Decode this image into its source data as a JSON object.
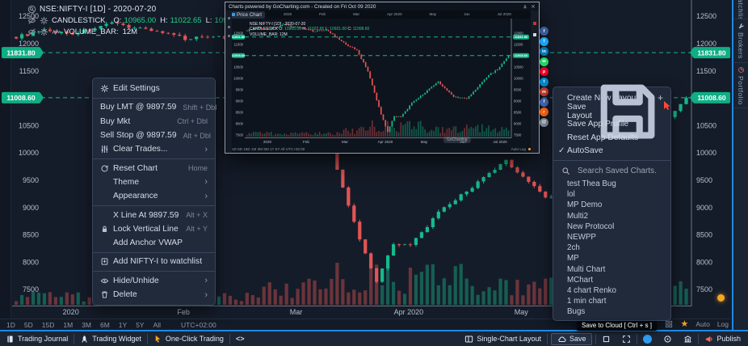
{
  "legend": {
    "symbol": "NSE:NIFTY-I [1D] - 2020-07-20",
    "study1": {
      "name": "CANDLESTICK",
      "fields": [
        [
          "O:",
          "10965.00"
        ],
        [
          "H:",
          "11022.65"
        ],
        [
          "L:",
          "10921.00"
        ],
        [
          "C:",
          "11008.60"
        ]
      ]
    },
    "study2": {
      "name": "VOLUME_BAR:",
      "value": "12M"
    }
  },
  "tf_bar": {
    "ranges": [
      "1D",
      "5D",
      "15D",
      "1M",
      "3M",
      "6M",
      "1Y",
      "5Y",
      "All"
    ],
    "timezone": "UTC+02:00",
    "auto": "Auto",
    "log": "Log"
  },
  "context_menu": {
    "items": [
      {
        "label": "Edit Settings",
        "icon": "gear",
        "sep_after": true
      },
      {
        "label": "Buy LMT @ 9897.59",
        "shortcut": "Shift + Dbl",
        "flush": true
      },
      {
        "label": "Buy Mkt",
        "shortcut": "Ctrl + Dbl",
        "flush": true
      },
      {
        "label": "Sell Stop @ 9897.59",
        "shortcut": "Alt + Dbl",
        "flush": true
      },
      {
        "label": "Clear Trades...",
        "icon": "sliders",
        "arrow": true,
        "sep_after": true
      },
      {
        "label": "Reset Chart",
        "icon": "refresh",
        "shortcut": "Home"
      },
      {
        "label": "Theme",
        "arrow": true
      },
      {
        "label": "Appearance",
        "arrow": true,
        "sep_after": true
      },
      {
        "label": "X Line At 9897.59",
        "shortcut": "Alt + X"
      },
      {
        "label": "Lock Vertical Line",
        "icon": "lock",
        "shortcut": "Alt + Y"
      },
      {
        "label": "Add Anchor VWAP",
        "sep_after": true
      },
      {
        "label": "Add NIFTY-I to watchlist",
        "icon": "bookmark-plus",
        "sep_after": true
      },
      {
        "label": "Hide/Unhide",
        "icon": "eye",
        "arrow": true
      },
      {
        "label": "Delete",
        "icon": "trash",
        "arrow": true
      }
    ]
  },
  "layout_menu": {
    "items": [
      {
        "label": "Create New Layout",
        "right_icon": "plus"
      },
      {
        "label": "Save Layout",
        "right_icon": "floppy"
      },
      {
        "label": "Save App Profile"
      },
      {
        "label": "Reset App Defaults"
      },
      {
        "label": "AutoSave",
        "checked": true
      }
    ],
    "search_placeholder": "Search Saved Charts.",
    "saved_charts": [
      "test Thea Bug",
      "lol",
      "MP Demo",
      "Multi2",
      "New Protocol",
      "NEWPP",
      "2ch",
      "MP",
      "Multi Chart",
      "MChart",
      "4 chart Renko",
      "1 min chart",
      "Bugs"
    ]
  },
  "popup": {
    "title": "Charts powered by GoCharting.com - Created on Fri Oct 09 2020",
    "tab": "Price Chart",
    "x_labels": [
      "2020",
      "Feb",
      "Mar",
      "Apr 2020",
      "May",
      "Jun",
      "Jul 2020"
    ],
    "watermark": "GoCharting"
  },
  "share_buttons": [
    {
      "name": "facebook",
      "color": "#3b5998",
      "glyph": "f"
    },
    {
      "name": "twitter",
      "color": "#1da1f2",
      "glyph": "t"
    },
    {
      "name": "linkedin",
      "color": "#0077b5",
      "glyph": "in"
    },
    {
      "name": "whatsapp",
      "color": "#25d366",
      "glyph": "w"
    },
    {
      "name": "pinterest",
      "color": "#e60023",
      "glyph": "p"
    },
    {
      "name": "telegram",
      "color": "#0088cc",
      "glyph": "t"
    },
    {
      "name": "mail-red",
      "color": "#c0392b",
      "glyph": "m"
    },
    {
      "name": "facebook-alt",
      "color": "#4267b2",
      "glyph": "f"
    },
    {
      "name": "reddit",
      "color": "#ff6314",
      "glyph": "r"
    },
    {
      "name": "email",
      "color": "#7f8c9b",
      "glyph": "@"
    }
  ],
  "tooltip": "Save to Cloud [ Ctrl + s ]",
  "bottom_bar": {
    "left_groups": [
      [
        {
          "label": "Trading Journal",
          "icon": "journal"
        }
      ],
      [
        {
          "label": "Trading Widget",
          "icon": "rocket"
        }
      ],
      [
        {
          "label": "One-Click Trading",
          "icon": "cursor",
          "icon_class": "orange"
        }
      ],
      [
        {
          "label": "",
          "icon": "code"
        }
      ]
    ],
    "right_groups": [
      [
        {
          "label": "Single-Chart Layout",
          "icon": "layout"
        }
      ],
      [
        {
          "label": "Save",
          "icon": "cloud",
          "boxed": true
        }
      ],
      [
        {
          "label": "",
          "icon": "square"
        },
        {
          "label": "",
          "icon": "expand"
        }
      ],
      [
        {
          "label": "",
          "icon": "circle-blue"
        },
        {
          "label": "",
          "icon": "target"
        },
        {
          "label": "",
          "icon": "bank"
        }
      ],
      [
        {
          "label": "Publish",
          "icon": "megaphone",
          "icon_class": "redish"
        }
      ]
    ]
  },
  "sidebar_tabs": [
    {
      "label": "Watchlist",
      "icon": "",
      "cut": true
    },
    {
      "label": "Brokers",
      "icon": "wrench"
    },
    {
      "label": "Portfolio",
      "icon": "pie"
    }
  ],
  "chart_data": {
    "type": "candlestick",
    "symbol": "NSE:NIFTY-I",
    "interval": "1D",
    "last_date": "2020-07-20",
    "ohlc_last": {
      "o": 10965.0,
      "h": 11022.65,
      "l": 10921.0,
      "c": 11008.6
    },
    "volume_last": "12M",
    "levels": [
      11831.8,
      11008.6
    ],
    "level_labels": [
      "11831.80",
      "11008.60"
    ],
    "y_ticks": [
      12500,
      12000,
      11500,
      11000,
      10500,
      10000,
      9500,
      9000,
      8500,
      8000,
      7500
    ],
    "x_months": [
      "2020",
      "Feb",
      "Mar",
      "Apr 2020",
      "May",
      "Jun"
    ],
    "month_start_indices": [
      10,
      30,
      50,
      70,
      90,
      110
    ],
    "count": 120,
    "close_path_anchors": [
      [
        0,
        12120
      ],
      [
        5,
        12230
      ],
      [
        10,
        12180
      ],
      [
        17,
        12360
      ],
      [
        24,
        12250
      ],
      [
        30,
        12090
      ],
      [
        36,
        12150
      ],
      [
        44,
        11560
      ],
      [
        50,
        11250
      ],
      [
        55,
        10320
      ],
      [
        58,
        9350
      ],
      [
        61,
        8420
      ],
      [
        64,
        7650
      ],
      [
        67,
        8350
      ],
      [
        70,
        8300
      ],
      [
        75,
        8900
      ],
      [
        80,
        9300
      ],
      [
        87,
        9850
      ],
      [
        90,
        9560
      ],
      [
        94,
        9200
      ],
      [
        100,
        9100
      ],
      [
        104,
        9500
      ],
      [
        108,
        9950
      ],
      [
        110,
        10150
      ],
      [
        114,
        10400
      ],
      [
        117,
        10750
      ],
      [
        119,
        11008.6
      ]
    ]
  }
}
